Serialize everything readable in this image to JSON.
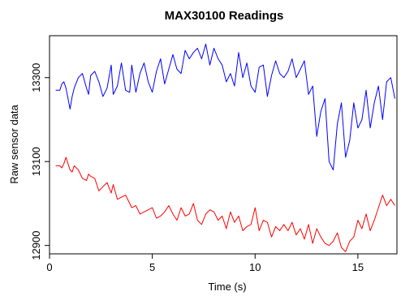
{
  "chart_data": {
    "type": "line",
    "title": "MAX30100 Readings",
    "xlabel": "Time (s)",
    "ylabel": "Raw sensor data",
    "xlim": [
      0.0,
      16.9
    ],
    "ylim": [
      12880,
      13400
    ],
    "x_ticks": [
      0,
      5,
      10,
      15
    ],
    "x_tick_labels": [
      "0",
      "5",
      "10",
      "15"
    ],
    "y_ticks": [
      12900,
      13100,
      13300
    ],
    "y_tick_labels": [
      "12900",
      "13100",
      "13300"
    ],
    "grid": false,
    "legend": "none",
    "series": [
      {
        "color": "#0000ff",
        "x": [
          0.3,
          0.5,
          0.6,
          0.7,
          0.8,
          0.9,
          1.0,
          1.1,
          1.2,
          1.4,
          1.6,
          1.8,
          1.9,
          2.0,
          2.2,
          2.4,
          2.6,
          2.8,
          3.0,
          3.1,
          3.3,
          3.5,
          3.7,
          3.9,
          4.0,
          4.2,
          4.4,
          4.6,
          4.8,
          5.0,
          5.2,
          5.4,
          5.6,
          5.8,
          6.0,
          6.2,
          6.4,
          6.6,
          6.8,
          7.0,
          7.2,
          7.4,
          7.6,
          7.8,
          8.0,
          8.2,
          8.4,
          8.6,
          8.8,
          9.0,
          9.2,
          9.4,
          9.6,
          9.8,
          10.0,
          10.2,
          10.4,
          10.6,
          10.8,
          11.0,
          11.2,
          11.4,
          11.6,
          11.8,
          12.0,
          12.2,
          12.4,
          12.6,
          12.8,
          13.0,
          13.2,
          13.4,
          13.6,
          13.8,
          14.0,
          14.2,
          14.4,
          14.6,
          14.8,
          15.0,
          15.2,
          15.4,
          15.6,
          15.8,
          16.0,
          16.2,
          16.4,
          16.6,
          16.8
        ],
        "y": [
          13270,
          13270,
          13285,
          13290,
          13275,
          13250,
          13225,
          13255,
          13275,
          13300,
          13310,
          13275,
          13260,
          13305,
          13315,
          13290,
          13255,
          13275,
          13330,
          13260,
          13280,
          13335,
          13270,
          13265,
          13330,
          13265,
          13310,
          13335,
          13290,
          13265,
          13315,
          13345,
          13285,
          13320,
          13355,
          13320,
          13310,
          13365,
          13345,
          13360,
          13370,
          13345,
          13380,
          13330,
          13370,
          13345,
          13330,
          13290,
          13310,
          13280,
          13360,
          13300,
          13335,
          13280,
          13265,
          13325,
          13330,
          13255,
          13305,
          13340,
          13310,
          13300,
          13315,
          13345,
          13300,
          13320,
          13340,
          13260,
          13280,
          13160,
          13220,
          13250,
          13100,
          13080,
          13190,
          13240,
          13110,
          13150,
          13240,
          13180,
          13200,
          13270,
          13180,
          13240,
          13280,
          13200,
          13290,
          13300,
          13250
        ],
        "name": ""
      },
      {
        "color": "#ff0000",
        "x": [
          0.3,
          0.5,
          0.6,
          0.7,
          0.8,
          0.9,
          1.0,
          1.1,
          1.2,
          1.4,
          1.6,
          1.8,
          1.9,
          2.0,
          2.2,
          2.4,
          2.6,
          2.8,
          3.0,
          3.1,
          3.3,
          3.5,
          3.7,
          3.9,
          4.0,
          4.2,
          4.4,
          4.6,
          4.8,
          5.0,
          5.2,
          5.4,
          5.6,
          5.8,
          6.0,
          6.2,
          6.4,
          6.6,
          6.8,
          7.0,
          7.2,
          7.4,
          7.6,
          7.8,
          8.0,
          8.2,
          8.4,
          8.6,
          8.8,
          9.0,
          9.2,
          9.4,
          9.6,
          9.8,
          10.0,
          10.2,
          10.4,
          10.6,
          10.8,
          11.0,
          11.2,
          11.4,
          11.6,
          11.8,
          12.0,
          12.2,
          12.4,
          12.6,
          12.8,
          13.0,
          13.2,
          13.4,
          13.6,
          13.8,
          14.0,
          14.2,
          14.4,
          14.6,
          14.8,
          15.0,
          15.2,
          15.4,
          15.6,
          15.8,
          16.0,
          16.2,
          16.4,
          16.6,
          16.8
        ],
        "y": [
          13090,
          13090,
          13085,
          13095,
          13110,
          13095,
          13080,
          13075,
          13090,
          13080,
          13060,
          13055,
          13070,
          13065,
          13060,
          13030,
          13040,
          13050,
          13025,
          13045,
          13010,
          13015,
          13020,
          13000,
          12990,
          12995,
          12975,
          12980,
          12985,
          12990,
          12965,
          12970,
          12980,
          12995,
          12975,
          12960,
          12990,
          12970,
          12975,
          13000,
          12960,
          12950,
          12975,
          12985,
          12980,
          12960,
          12970,
          12940,
          12980,
          12955,
          12970,
          12935,
          12945,
          12950,
          12990,
          12935,
          12960,
          12955,
          12920,
          12945,
          12935,
          12950,
          12935,
          12955,
          12925,
          12940,
          12915,
          12950,
          12905,
          12940,
          12920,
          12905,
          12900,
          12910,
          12930,
          12895,
          12885,
          12910,
          12920,
          12960,
          12940,
          12975,
          12935,
          12960,
          12990,
          13020,
          12995,
          13010,
          12995
        ]
      }
    ]
  }
}
